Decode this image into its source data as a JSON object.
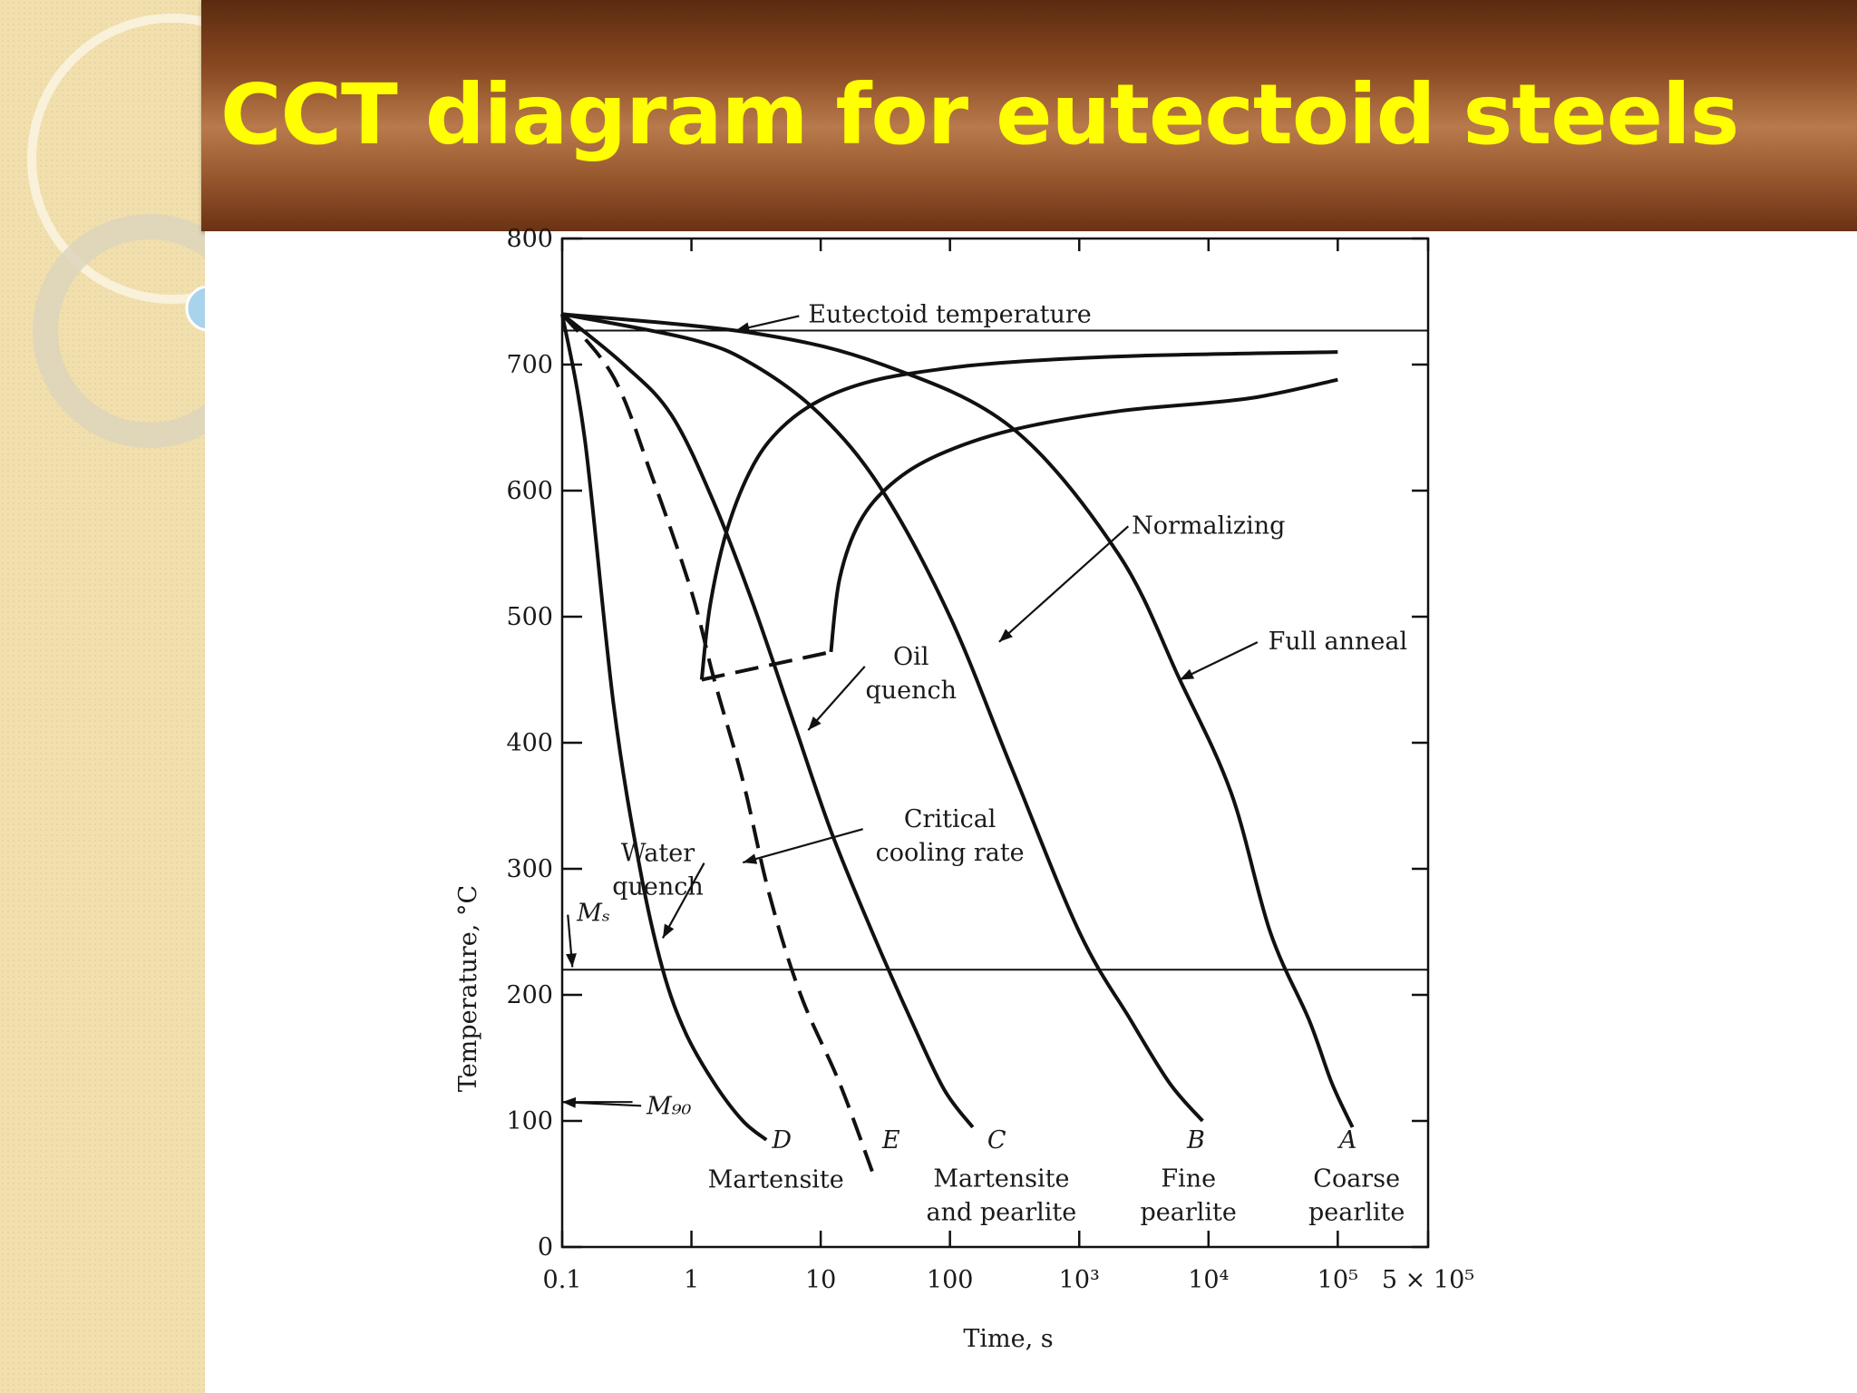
{
  "slide": {
    "title": "CCT diagram for eutectoid steels",
    "title_color": "#ffff00",
    "banner_color": "#8a4a22"
  },
  "chart_data": {
    "type": "line",
    "title": "",
    "xlabel": "Time, s",
    "ylabel": "Temperature, °C",
    "x_scale": "log",
    "xlim": [
      0.1,
      500000
    ],
    "ylim": [
      0,
      800
    ],
    "x_ticks": [
      {
        "value": 0.1,
        "label": "0.1"
      },
      {
        "value": 1,
        "label": "1"
      },
      {
        "value": 10,
        "label": "10"
      },
      {
        "value": 100,
        "label": "100"
      },
      {
        "value": 1000,
        "label": "10³"
      },
      {
        "value": 10000,
        "label": "10⁴"
      },
      {
        "value": 100000,
        "label": "10⁵"
      },
      {
        "value": 500000,
        "label": "5 × 10⁵"
      }
    ],
    "y_ticks": [
      {
        "value": 0,
        "label": "0"
      },
      {
        "value": 100,
        "label": "100"
      },
      {
        "value": 200,
        "label": "200"
      },
      {
        "value": 300,
        "label": "300"
      },
      {
        "value": 400,
        "label": "400"
      },
      {
        "value": 500,
        "label": "500"
      },
      {
        "value": 600,
        "label": "600"
      },
      {
        "value": 700,
        "label": "700"
      },
      {
        "value": 800,
        "label": "800"
      }
    ],
    "reference_lines": [
      {
        "name": "eutectoid",
        "y": 727,
        "label": "Eutectoid temperature",
        "label_x": 8,
        "label_y": 740,
        "arrow_to_x": 2.2,
        "arrow_to_y": 727
      },
      {
        "name": "ms",
        "y": 220,
        "label": "Mₛ",
        "label_x": 0.13,
        "label_y": 265,
        "arrow_to_x": 0.12,
        "arrow_to_y": 222
      },
      {
        "name": "m90",
        "y": 115,
        "label": "M₉₀",
        "label_x": 0.45,
        "label_y": 112,
        "arrow_to_x": 0.1,
        "arrow_to_y": 115,
        "short": true
      }
    ],
    "transformation_curves": [
      {
        "name": "Pearlite start",
        "style": "solid",
        "x": [
          1.2,
          1.4,
          1.9,
          3,
          5,
          10,
          25,
          80,
          300,
          3000,
          100000
        ],
        "y": [
          450,
          510,
          570,
          620,
          650,
          672,
          687,
          696,
          702,
          707,
          710
        ]
      },
      {
        "name": "Pearlite finish",
        "style": "solid",
        "x": [
          12,
          14,
          20,
          35,
          80,
          300,
          2000,
          20000,
          100000
        ],
        "y": [
          472,
          530,
          575,
          605,
          628,
          648,
          663,
          673,
          688
        ]
      },
      {
        "name": "Transformation limit",
        "style": "dashed",
        "x": [
          1.2,
          12
        ],
        "y": [
          450,
          472
        ]
      }
    ],
    "cooling_curves": [
      {
        "name": "D",
        "style": "solid",
        "x": [
          0.1,
          0.15,
          0.25,
          0.4,
          0.6,
          0.9,
          1.5,
          2.5,
          3.8
        ],
        "y": [
          740,
          640,
          430,
          300,
          220,
          170,
          130,
          100,
          85
        ]
      },
      {
        "name": "E",
        "style": "dashed",
        "x": [
          0.1,
          0.25,
          0.5,
          1.0,
          1.5,
          2.5,
          4,
          7,
          14,
          25
        ],
        "y": [
          740,
          690,
          610,
          520,
          450,
          370,
          280,
          200,
          130,
          60
        ]
      },
      {
        "name": "C",
        "style": "solid",
        "x": [
          0.1,
          0.3,
          0.7,
          1.5,
          3,
          6,
          12,
          25,
          50,
          90,
          150
        ],
        "y": [
          740,
          700,
          660,
          590,
          510,
          420,
          330,
          250,
          180,
          125,
          95
        ]
      },
      {
        "name": "B",
        "style": "solid",
        "x": [
          0.1,
          1,
          3,
          10,
          30,
          100,
          300,
          1000,
          2500,
          5000,
          9000
        ],
        "y": [
          740,
          720,
          700,
          660,
          600,
          500,
          380,
          250,
          180,
          130,
          100
        ]
      },
      {
        "name": "A",
        "style": "solid",
        "x": [
          0.1,
          3,
          30,
          300,
          2000,
          6000,
          15000,
          30000,
          60000,
          90000,
          130000
        ],
        "y": [
          740,
          725,
          700,
          650,
          550,
          450,
          360,
          250,
          180,
          130,
          95
        ]
      }
    ],
    "curve_labels": [
      {
        "text": "D",
        "x": 5,
        "y": 85,
        "italic": true
      },
      {
        "text": "E",
        "x": 35,
        "y": 85,
        "italic": true
      },
      {
        "text": "C",
        "x": 230,
        "y": 85,
        "italic": true
      },
      {
        "text": "B",
        "x": 8000,
        "y": 85,
        "italic": true
      },
      {
        "text": "A",
        "x": 120000,
        "y": 85,
        "italic": true
      }
    ],
    "microstructure_labels": [
      {
        "lines": [
          "Martensite"
        ],
        "x": 4.5,
        "y": 47
      },
      {
        "lines": [
          "Martensite",
          "and pearlite"
        ],
        "x": 250,
        "y": 48
      },
      {
        "lines": [
          "Fine",
          "pearlite"
        ],
        "x": 7000,
        "y": 48
      },
      {
        "lines": [
          "Coarse",
          "pearlite"
        ],
        "x": 140000,
        "y": 48
      }
    ],
    "annotations": [
      {
        "lines": [
          "Normalizing"
        ],
        "label_x": 10000,
        "label_y": 566,
        "arrow_to_x": 240,
        "arrow_to_y": 480
      },
      {
        "lines": [
          "Full anneal"
        ],
        "label_x": 100000,
        "label_y": 474,
        "arrow_to_x": 6000,
        "arrow_to_y": 450
      },
      {
        "lines": [
          "Oil",
          "quench"
        ],
        "label_x": 50,
        "label_y": 462,
        "arrow_to_x": 8,
        "arrow_to_y": 410
      },
      {
        "lines": [
          "Critical",
          "cooling rate"
        ],
        "label_x": 100,
        "label_y": 333,
        "arrow_to_x": 2.5,
        "arrow_to_y": 305
      },
      {
        "lines": [
          "Water",
          "quench"
        ],
        "label_x": 0.55,
        "label_y": 306,
        "arrow_to_x": 0.6,
        "arrow_to_y": 245
      }
    ],
    "grid": false,
    "legend": "none"
  }
}
